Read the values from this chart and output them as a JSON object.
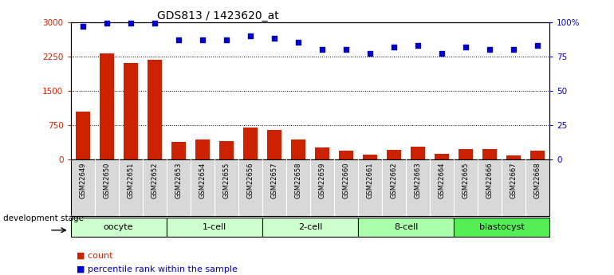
{
  "title": "GDS813 / 1423620_at",
  "samples": [
    "GSM22649",
    "GSM22650",
    "GSM22651",
    "GSM22652",
    "GSM22653",
    "GSM22654",
    "GSM22655",
    "GSM22656",
    "GSM22657",
    "GSM22658",
    "GSM22659",
    "GSM22660",
    "GSM22661",
    "GSM22662",
    "GSM22663",
    "GSM22664",
    "GSM22665",
    "GSM22666",
    "GSM22667",
    "GSM22668"
  ],
  "counts": [
    1050,
    2320,
    2100,
    2170,
    380,
    430,
    410,
    700,
    650,
    430,
    260,
    200,
    110,
    210,
    285,
    120,
    235,
    225,
    95,
    185
  ],
  "percentiles": [
    97,
    99,
    99,
    99,
    87,
    87,
    87,
    90,
    88,
    85,
    80,
    80,
    77,
    82,
    83,
    77,
    82,
    80,
    80,
    83
  ],
  "groups": [
    {
      "label": "oocyte",
      "start": 0,
      "end": 4,
      "color": "#ccffcc"
    },
    {
      "label": "1-cell",
      "start": 4,
      "end": 8,
      "color": "#ccffcc"
    },
    {
      "label": "2-cell",
      "start": 8,
      "end": 12,
      "color": "#ccffcc"
    },
    {
      "label": "8-cell",
      "start": 12,
      "end": 16,
      "color": "#aaffaa"
    },
    {
      "label": "blastocyst",
      "start": 16,
      "end": 20,
      "color": "#55ee55"
    }
  ],
  "bar_color": "#cc2200",
  "dot_color": "#0000cc",
  "ylim_left": [
    0,
    3000
  ],
  "ylim_right": [
    0,
    100
  ],
  "yticks_left": [
    0,
    750,
    1500,
    2250,
    3000
  ],
  "yticks_right": [
    0,
    25,
    50,
    75,
    100
  ],
  "yticklabels_right": [
    "0",
    "25",
    "50",
    "75",
    "100%"
  ],
  "axis_label_color_left": "#cc2200",
  "axis_label_color_right": "#0000cc",
  "title_fontsize": 10,
  "tick_label_bg": "#d8d8d8"
}
